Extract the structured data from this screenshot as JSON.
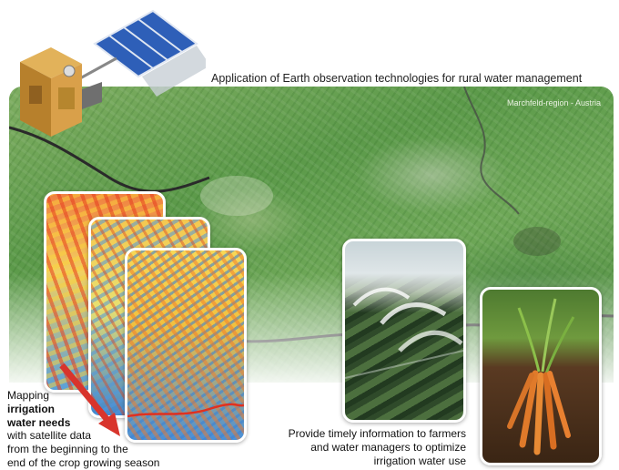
{
  "page": {
    "title": "Application of Earth observation technologies for rural water management",
    "region_label": "Marchfeld-region - Austria"
  },
  "mapping_text": {
    "line1": "Mapping",
    "line2": "irrigation",
    "line3": "water needs",
    "line4": "with satellite data",
    "line5": "from the beginning to the",
    "line6": "end of the crop growing season"
  },
  "info_text": {
    "line1": "Provide timely information to farmers",
    "line2": "and water managers to optimize",
    "line3": "irrigation water use"
  },
  "colors": {
    "arrow": "#d8342c",
    "river": "#2a2a2a",
    "map_boundary": "#e03020"
  }
}
